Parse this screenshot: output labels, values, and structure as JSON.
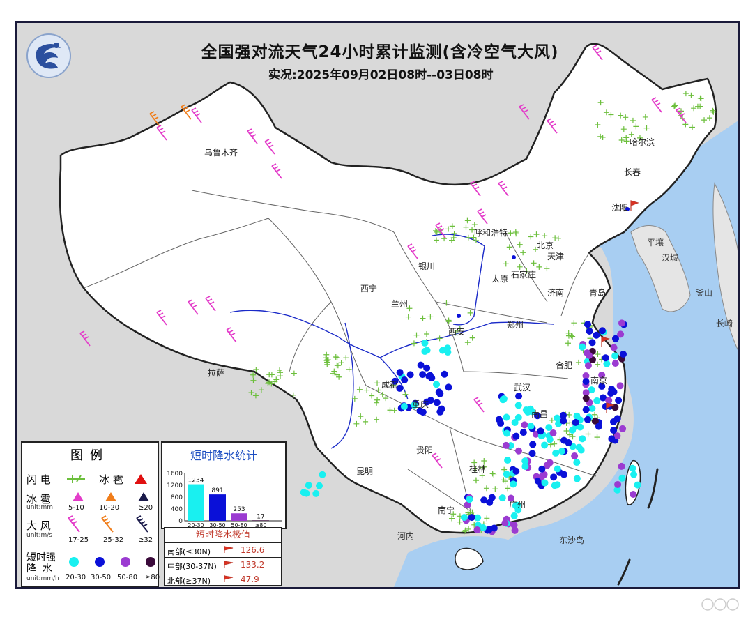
{
  "title": "全国强对流天气24小时累计监测(含冷空气大风)",
  "subtitle": "实况:2025年09月02日08时--03日08时",
  "cities": [
    {
      "name": "乌鲁木齐"
    },
    {
      "name": "哈尔滨"
    },
    {
      "name": "长春"
    },
    {
      "name": "沈阳"
    },
    {
      "name": "呼和浩特"
    },
    {
      "name": "北京"
    },
    {
      "name": "天津"
    },
    {
      "name": "银川"
    },
    {
      "name": "太原"
    },
    {
      "name": "石家庄"
    },
    {
      "name": "济南"
    },
    {
      "name": "西宁"
    },
    {
      "name": "兰州"
    },
    {
      "name": "郑州"
    },
    {
      "name": "西安"
    },
    {
      "name": "合肥"
    },
    {
      "name": "拉萨"
    },
    {
      "name": "成都"
    },
    {
      "name": "重庆"
    },
    {
      "name": "武汉"
    },
    {
      "name": "南昌"
    },
    {
      "name": "贵阳"
    },
    {
      "name": "昆明"
    },
    {
      "name": "桂林"
    },
    {
      "name": "南宁"
    },
    {
      "name": "广州"
    },
    {
      "name": "南京"
    },
    {
      "name": "青岛"
    }
  ],
  "places": [
    {
      "name": "平壤"
    },
    {
      "name": "汉城"
    },
    {
      "name": "釜山"
    },
    {
      "name": "长崎"
    },
    {
      "name": "河内"
    },
    {
      "name": "东沙岛"
    }
  ],
  "legend": {
    "title": "图例",
    "lightning_label": "闪 电",
    "hail_label": "冰 雹",
    "hail_row_label": "冰 雹",
    "hail_unit": "unit:mm",
    "hail_ranges": [
      "5-10",
      "10-20",
      "≥20"
    ],
    "wind_label": "大 风",
    "wind_unit": "unit:m/s",
    "wind_ranges": [
      "17-25",
      "25-32",
      "≥32"
    ],
    "rain_label_1": "短时强",
    "rain_label_2": "降  水",
    "rain_unit": "unit:mm/h",
    "rain_ranges": [
      "20-30",
      "30-50",
      "50-80",
      "≥80"
    ],
    "colors": {
      "hail_small": "#e33cc9",
      "hail_mid": "#f07d1a",
      "hail_large": "#1a1a4a",
      "hail_icon": "#e01010",
      "rain_1": "#19f0f0",
      "rain_2": "#0a10d8",
      "rain_3": "#9b3bd1",
      "rain_4": "#3a0a3a",
      "wind_1": "#e33cc9",
      "wind_2": "#f07d1a",
      "wind_3": "#1a1a4a",
      "lightning": "#6cbf3c"
    }
  },
  "stats": {
    "title": "短时降水统计",
    "chart_data": {
      "type": "bar",
      "categories": [
        "20-30",
        "30-50",
        "50-80",
        "≥80"
      ],
      "values": [
        1234,
        891,
        253,
        17
      ],
      "ylim": [
        0,
        1600
      ],
      "yticks": [
        0,
        400,
        800,
        1200,
        1600
      ],
      "colors": [
        "#19f0f0",
        "#0a10d8",
        "#9b3bd1",
        "#3a0a3a"
      ]
    }
  },
  "extreme": {
    "title": "短时降水极值",
    "rows": [
      {
        "name": "南部(≤30N)",
        "value": "126.6"
      },
      {
        "name": "中部(30-37N)",
        "value": "133.2"
      },
      {
        "name": "北部(≥37N)",
        "value": "47.9"
      }
    ]
  }
}
